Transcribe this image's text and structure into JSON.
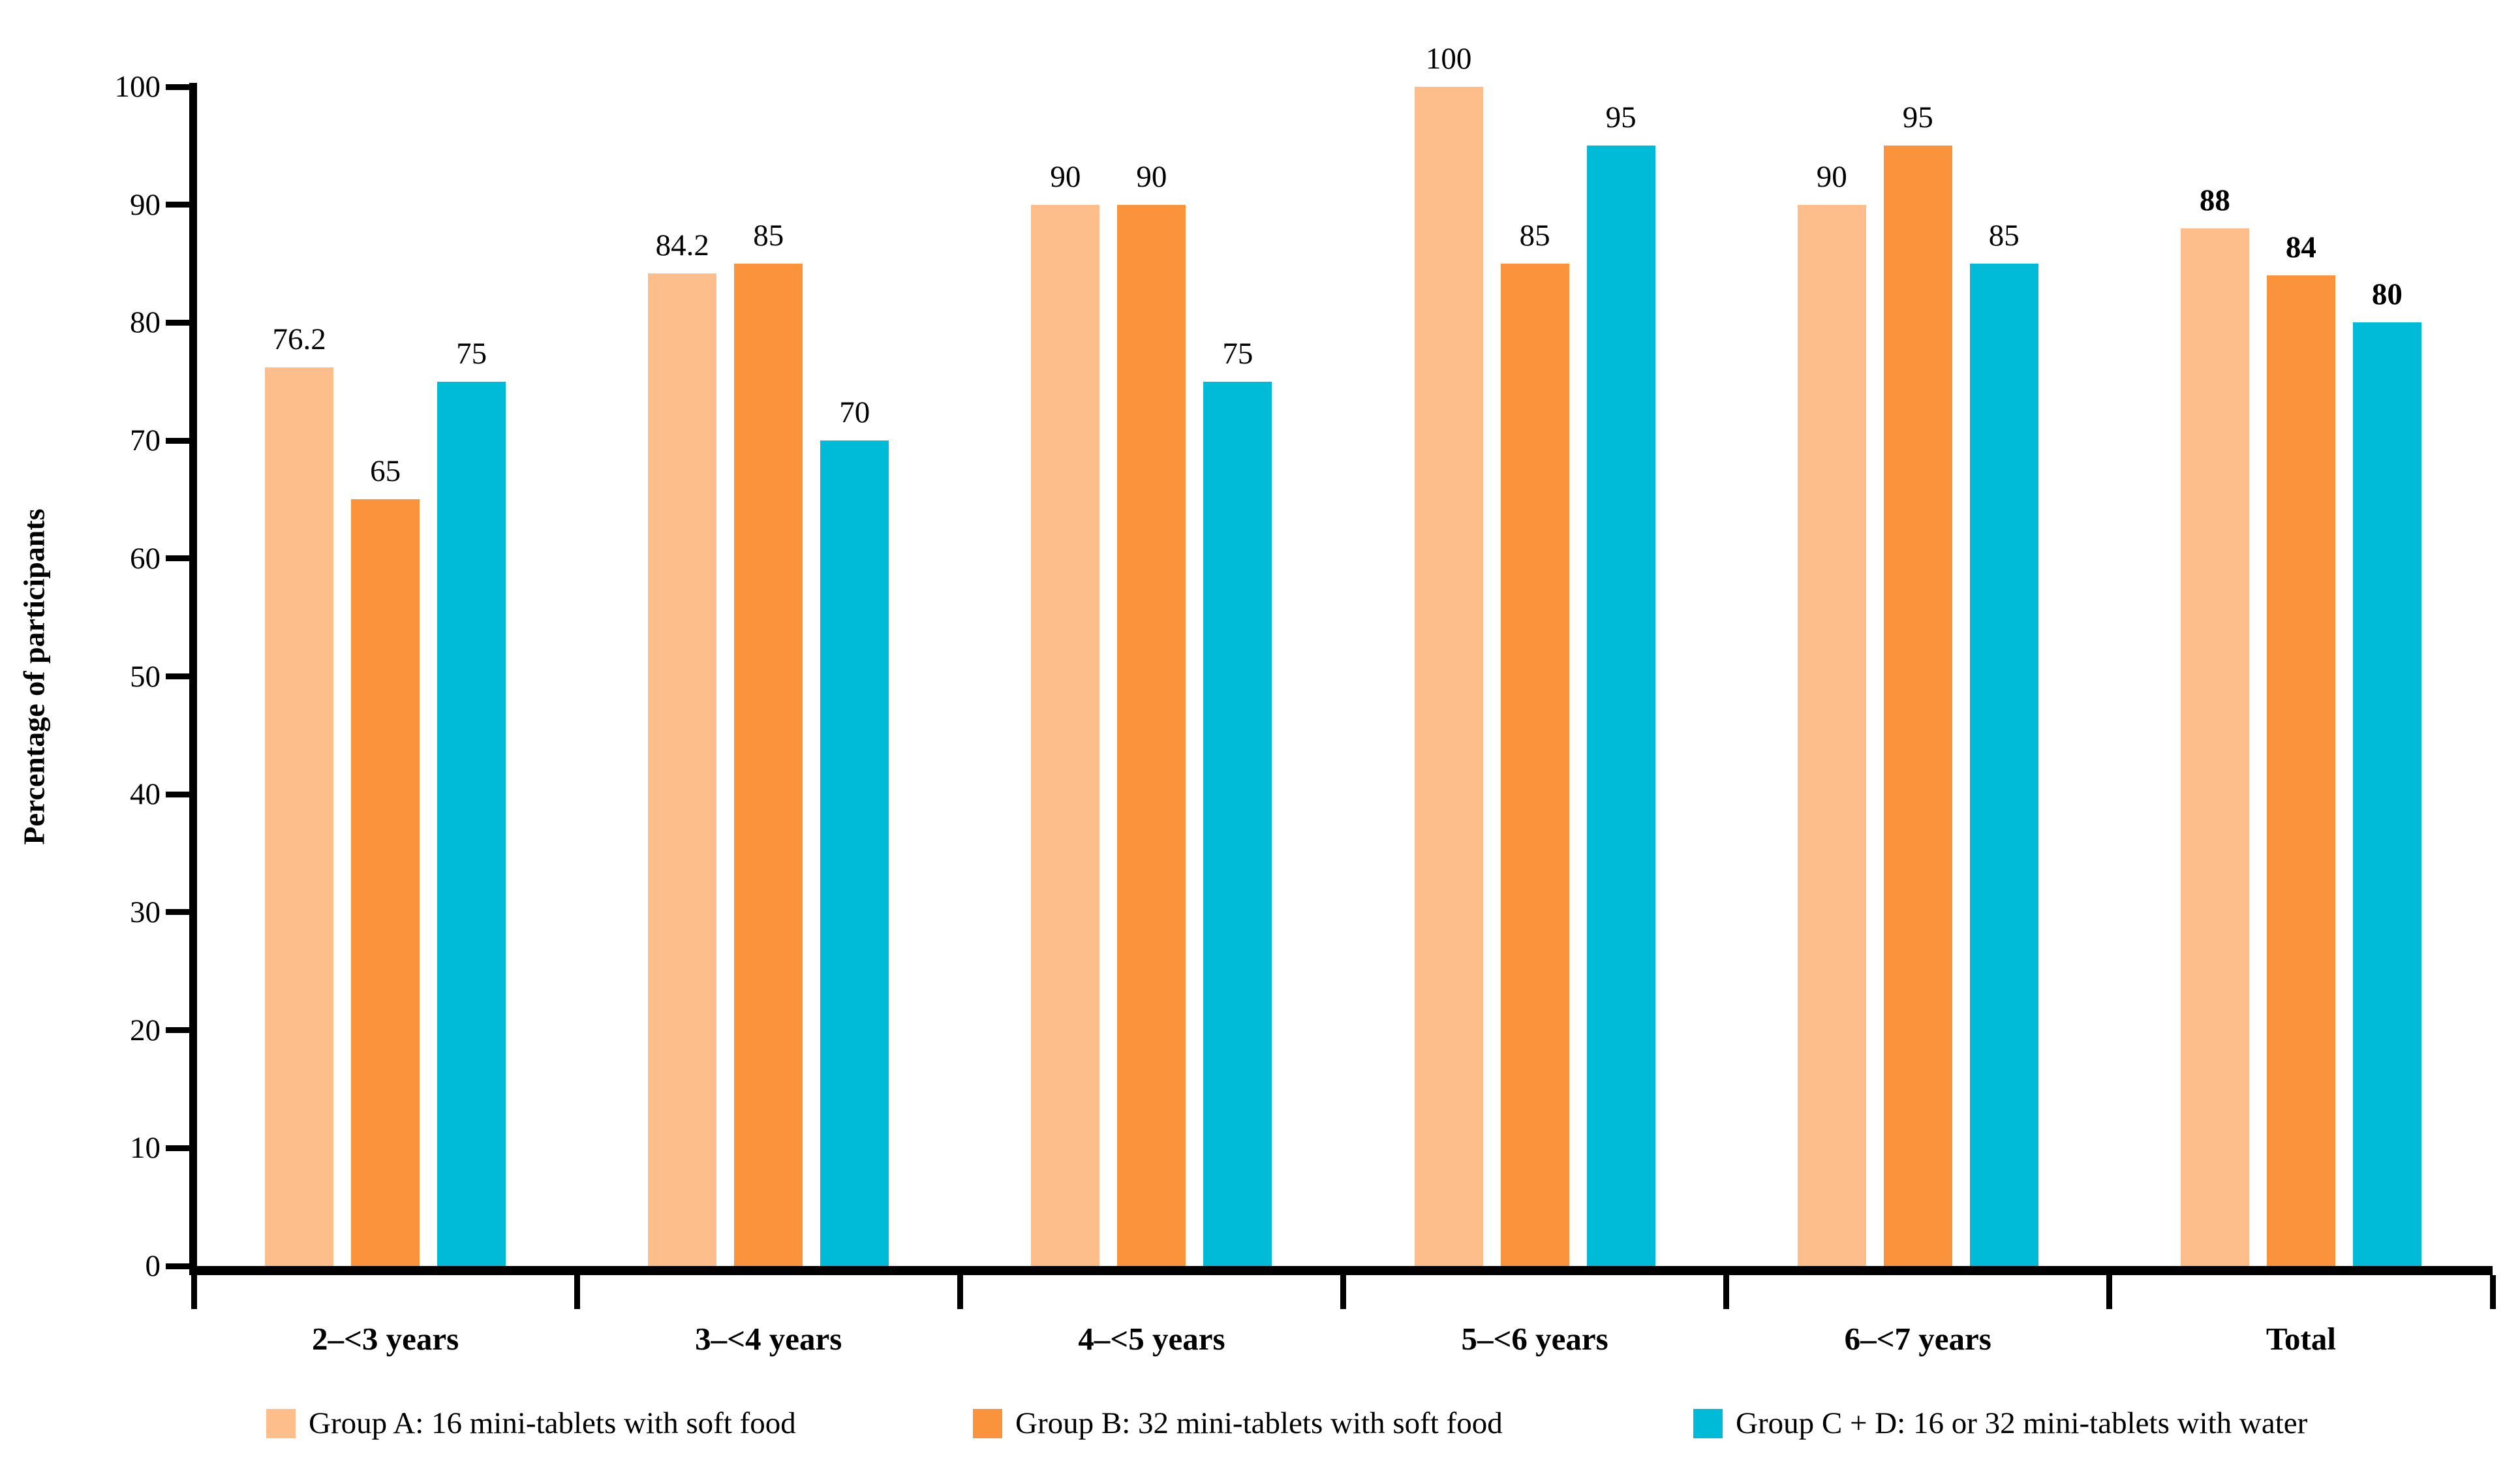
{
  "chart_data": {
    "type": "bar",
    "title": "",
    "ylabel": "Percentage of participants",
    "xlabel": "",
    "ylim": [
      0,
      100
    ],
    "ytick_step": 10,
    "ytick_labels": [
      "0",
      "10",
      "20",
      "30",
      "40",
      "50",
      "60",
      "70",
      "80",
      "90",
      "100"
    ],
    "grid": false,
    "legend_position": "bottom",
    "axis_color": "#000000",
    "label_color": "#000000",
    "categories": [
      "2–<3 years",
      "3–<4 years",
      "4–<5 years",
      "5–<6 years",
      "6–<7 years",
      "Total"
    ],
    "bold_value_labels_for": "Total",
    "series": [
      {
        "name": "Group A: 16 mini-tablets with soft food",
        "color": "#FDBE8C",
        "values": [
          76.2,
          84.2,
          90,
          100,
          90,
          88
        ],
        "labels": [
          "76.2",
          "84.2",
          "90",
          "100",
          "90",
          "88"
        ]
      },
      {
        "name": "Group B: 32 mini-tablets with soft food",
        "color": "#FB923C",
        "values": [
          65,
          85,
          90,
          85,
          95,
          84
        ],
        "labels": [
          "65",
          "85",
          "90",
          "85",
          "95",
          "84"
        ]
      },
      {
        "name": "Group C + D: 16 or 32 mini-tablets with water",
        "color": "#00BBD8",
        "values": [
          75,
          70,
          75,
          95,
          85,
          80
        ],
        "labels": [
          "75",
          "70",
          "75",
          "95",
          "85",
          "80"
        ]
      }
    ]
  }
}
